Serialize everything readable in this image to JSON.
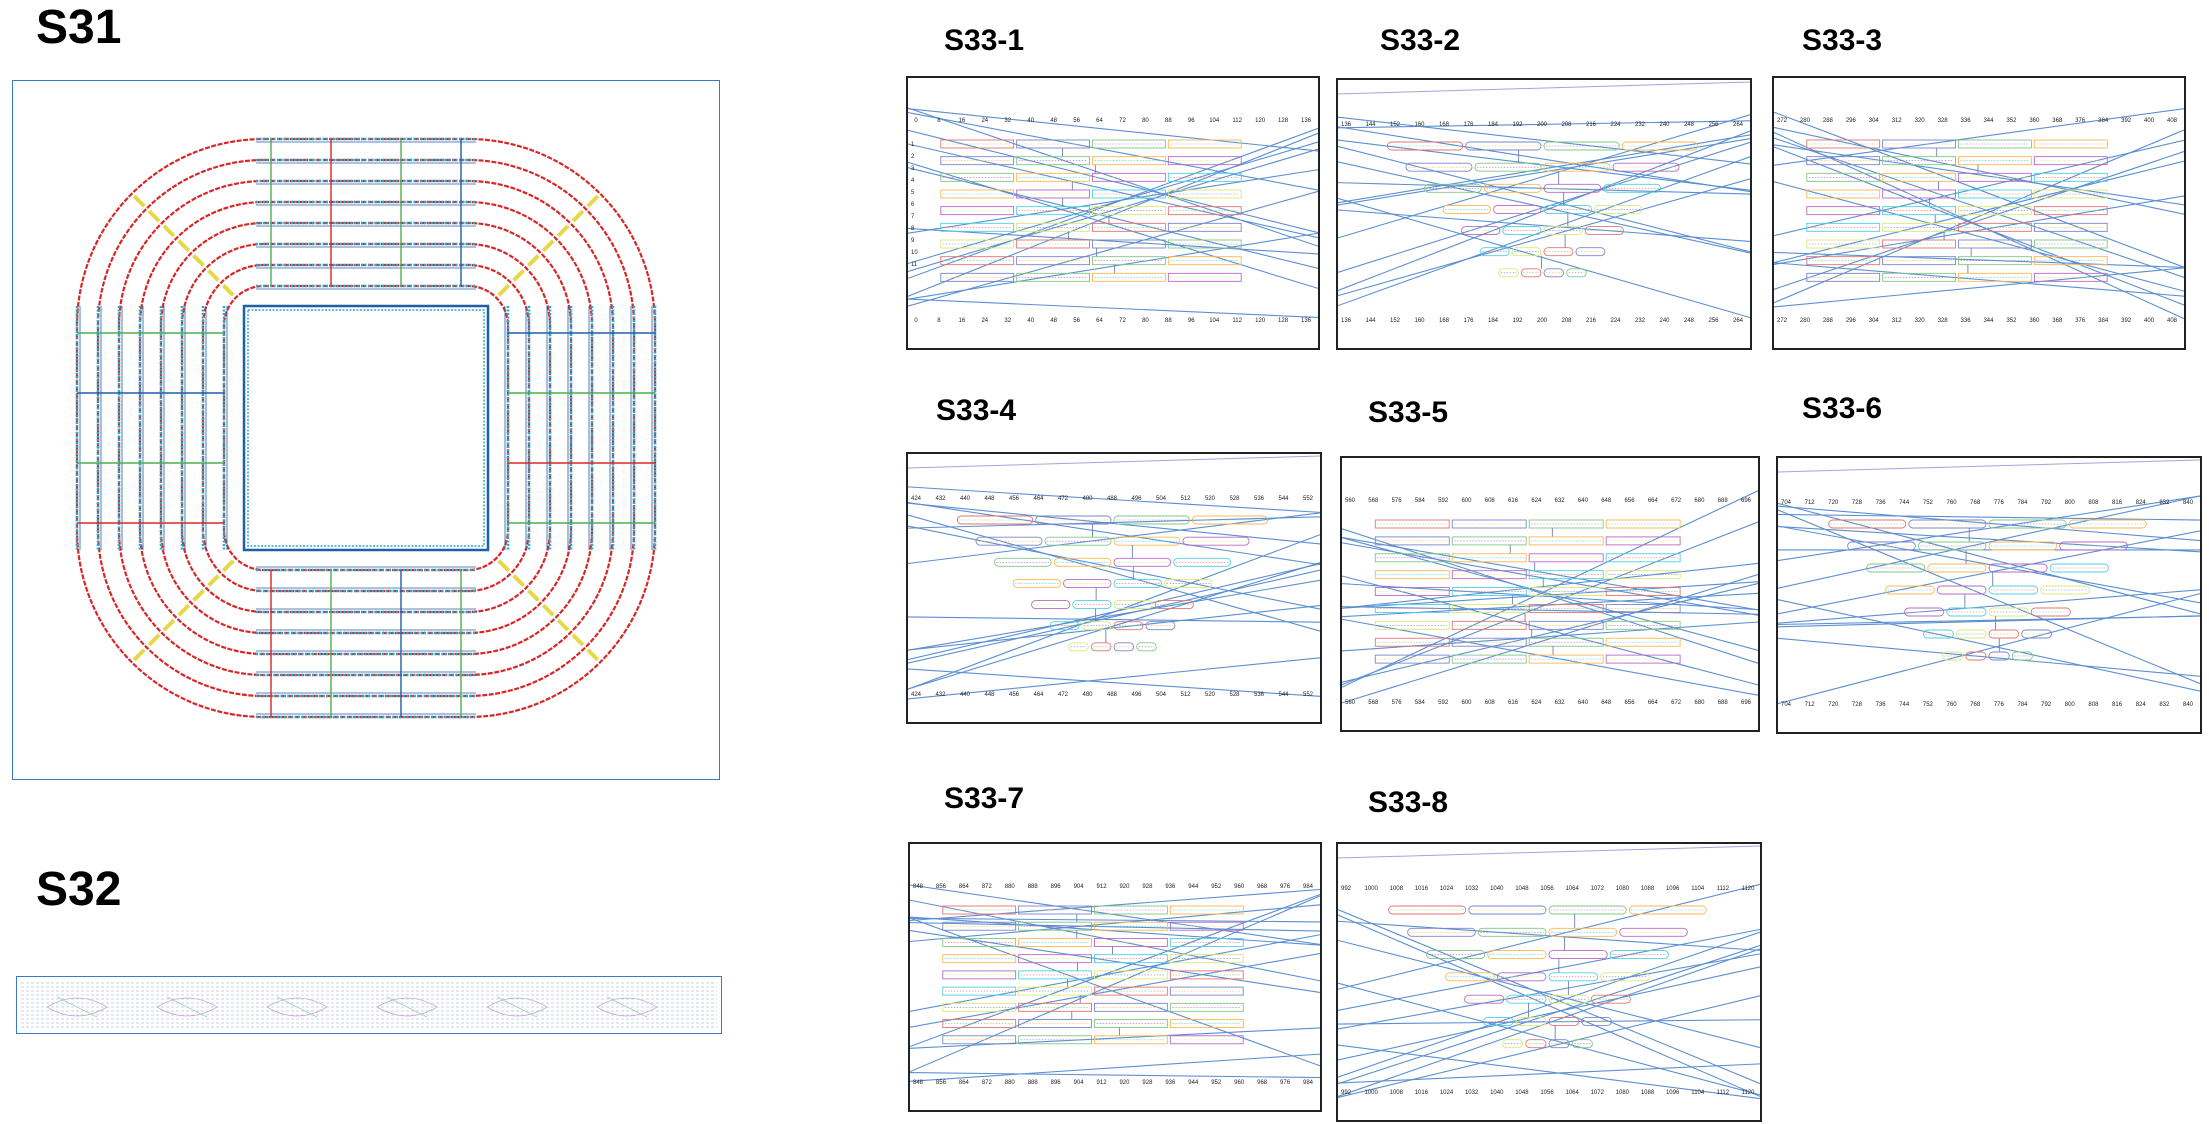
{
  "labels": {
    "s31": "S31",
    "s32": "S32"
  },
  "panels": [
    {
      "label": "S33-1",
      "ticks": [
        "0",
        "8",
        "16",
        "24",
        "32",
        "40",
        "48",
        "56",
        "64",
        "72",
        "80",
        "88",
        "96",
        "104",
        "112",
        "120",
        "128",
        "136"
      ],
      "row_labels": [
        "1",
        "2",
        "3",
        "4",
        "5",
        "6",
        "7",
        "8",
        "9",
        "10",
        "11"
      ],
      "shape": "rect"
    },
    {
      "label": "S33-2",
      "ticks": [
        "136",
        "144",
        "152",
        "160",
        "168",
        "176",
        "184",
        "192",
        "200",
        "208",
        "216",
        "224",
        "232",
        "240",
        "248",
        "256",
        "264"
      ],
      "shape": "taper"
    },
    {
      "label": "S33-3",
      "ticks": [
        "272",
        "280",
        "288",
        "296",
        "304",
        "312",
        "320",
        "328",
        "336",
        "344",
        "352",
        "360",
        "368",
        "376",
        "384",
        "392",
        "400",
        "408"
      ],
      "shape": "rect"
    },
    {
      "label": "S33-4",
      "ticks": [
        "424",
        "432",
        "440",
        "448",
        "456",
        "464",
        "472",
        "480",
        "488",
        "496",
        "504",
        "512",
        "520",
        "528",
        "536",
        "544",
        "552"
      ],
      "shape": "taper"
    },
    {
      "label": "S33-5",
      "ticks": [
        "560",
        "568",
        "576",
        "584",
        "592",
        "600",
        "608",
        "616",
        "624",
        "632",
        "640",
        "648",
        "656",
        "664",
        "672",
        "680",
        "688",
        "696"
      ],
      "shape": "rect"
    },
    {
      "label": "S33-6",
      "ticks": [
        "704",
        "712",
        "720",
        "728",
        "736",
        "744",
        "752",
        "760",
        "768",
        "776",
        "784",
        "792",
        "800",
        "808",
        "816",
        "824",
        "832",
        "840"
      ],
      "shape": "taper"
    },
    {
      "label": "S33-7",
      "ticks": [
        "848",
        "856",
        "864",
        "872",
        "880",
        "888",
        "896",
        "904",
        "912",
        "920",
        "928",
        "936",
        "944",
        "952",
        "960",
        "968",
        "976",
        "984"
      ],
      "shape": "rect"
    },
    {
      "label": "S33-8",
      "ticks": [
        "992",
        "1000",
        "1008",
        "1016",
        "1024",
        "1032",
        "1040",
        "1048",
        "1056",
        "1064",
        "1072",
        "1080",
        "1088",
        "1096",
        "1104",
        "1112",
        "1120"
      ],
      "shape": "taper"
    }
  ],
  "colors": {
    "helix_red": "#d62828",
    "helix_blue": "#1f5fa8",
    "staple_cyan": "#30a8c8",
    "staple_green": "#4caf50",
    "staple_yellow": "#e6d84a",
    "frame_blue": "#3c78c8",
    "strand_blue": "#5b8fd0"
  }
}
